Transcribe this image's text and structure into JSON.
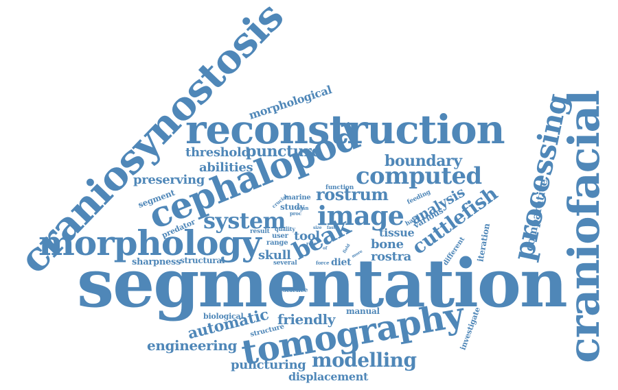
{
  "color": "#4f87b8",
  "words": [
    "segmentation",
    "craniosynostosis",
    "reconstruction",
    "craniofacial",
    "cephalopod",
    "morphology",
    "tomography",
    "processing",
    "computed",
    "image",
    "system",
    "beak",
    "cuttlefish",
    "modelling",
    "rostrum",
    "boundary",
    "threshold",
    "puncture",
    "preserving",
    "abilities",
    "analysis",
    "comparative",
    "morphological",
    "friendly",
    "automatic",
    "engineering",
    "puncturing",
    "displacement",
    "rostra",
    "bone",
    "tool",
    "skull",
    "tissue",
    "sharpness",
    "structural",
    "manual",
    "diet",
    "investigate",
    "iteration",
    "segment",
    "predator",
    "biological",
    "structure",
    "science",
    "several",
    "range",
    "user",
    "result",
    "quality",
    "study",
    "marine",
    "function",
    "feeding",
    "various",
    "hard",
    "different",
    "crucial",
    "proc",
    "scan",
    "size",
    "role",
    "force",
    "more",
    "fast",
    "field",
    "of"
  ]
}
